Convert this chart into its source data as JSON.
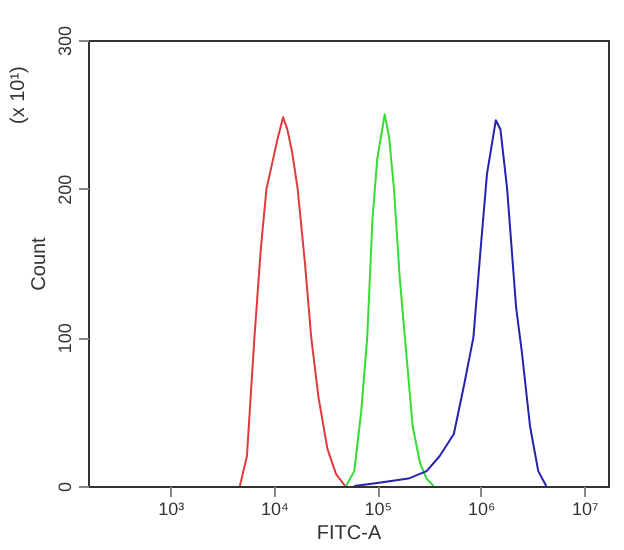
{
  "chart_data": {
    "type": "line",
    "xlabel": "FITC-A",
    "ylabel": "Count",
    "annotations": [
      "(x 10¹)"
    ],
    "log": "x",
    "xlim": [
      160,
      17000000
    ],
    "xticks": [
      {
        "value": 1000,
        "label": "10³"
      },
      {
        "value": 10000,
        "label": "10⁴"
      },
      {
        "value": 100000,
        "label": "10⁵"
      },
      {
        "value": 1000000,
        "label": "10⁶"
      },
      {
        "value": 10000000,
        "label": "10⁷"
      }
    ],
    "ylim": [
      0,
      300
    ],
    "yticks": [
      0,
      100,
      200,
      300
    ],
    "grid": false,
    "legend": false,
    "marker": "none",
    "line_style": "solid",
    "series": [
      {
        "color": "#e0393e",
        "x": [
          4700,
          5500,
          6500,
          7500,
          8500,
          9500,
          11000,
          12300,
          13500,
          15000,
          17000,
          20000,
          23000,
          27000,
          33000,
          40000,
          49000
        ],
        "values": [
          0,
          20,
          100,
          160,
          200,
          215,
          235,
          248,
          240,
          225,
          200,
          150,
          100,
          60,
          25,
          8,
          0
        ]
      },
      {
        "color": "#33dd33",
        "x": [
          50000,
          60000,
          70000,
          80000,
          90000,
          100000,
          118000,
          130000,
          145000,
          165000,
          185000,
          220000,
          260000,
          300000,
          350000
        ],
        "values": [
          0,
          10,
          50,
          100,
          180,
          220,
          250,
          235,
          200,
          140,
          100,
          40,
          15,
          5,
          0
        ]
      },
      {
        "color": "#2323b0",
        "x": [
          60000,
          100000,
          200000,
          300000,
          400000,
          550000,
          700000,
          850000,
          1000000,
          1150000,
          1400000,
          1550000,
          1800000,
          2200000,
          2500000,
          3000000,
          3600000,
          4300000
        ],
        "values": [
          0,
          2,
          5,
          10,
          20,
          35,
          70,
          100,
          160,
          210,
          246,
          240,
          200,
          120,
          90,
          40,
          10,
          0
        ]
      }
    ]
  }
}
